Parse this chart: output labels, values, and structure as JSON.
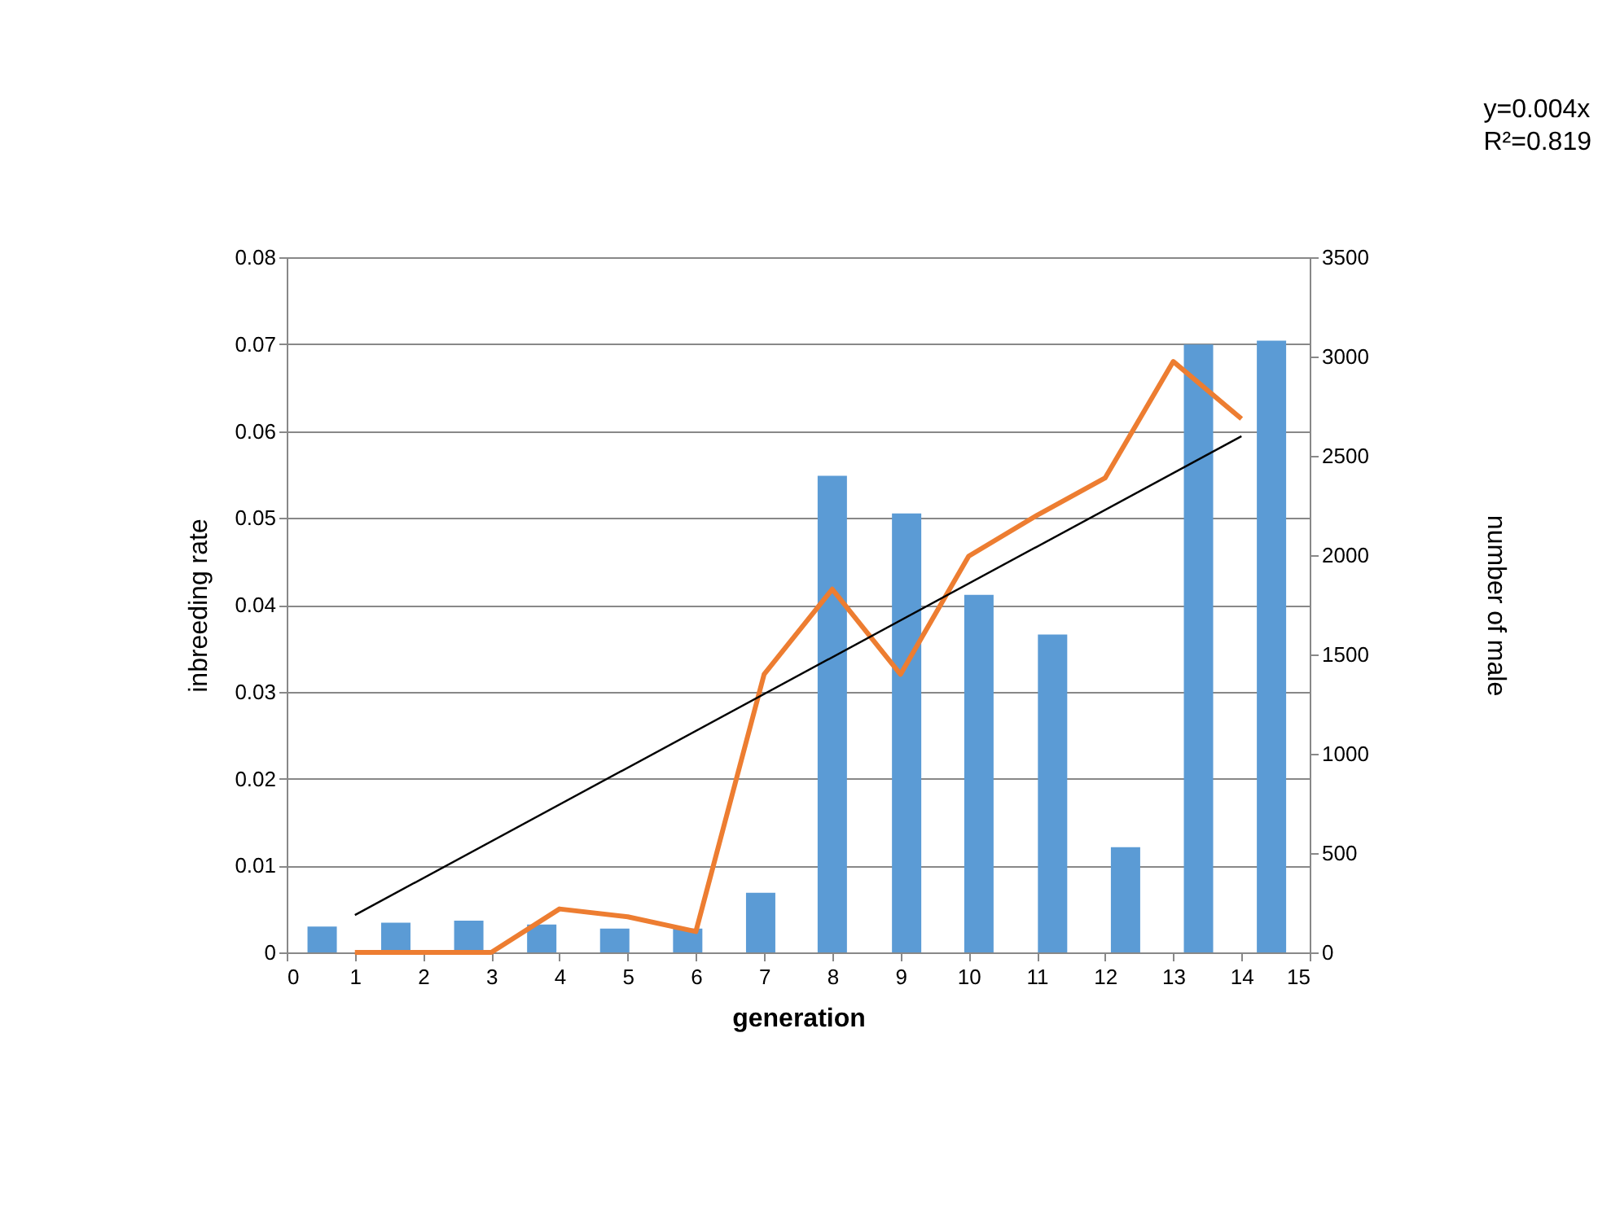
{
  "chart_data": {
    "type": "bar",
    "xlabel": "generation",
    "ylabel": "inbreeding rate",
    "y2label": "number of male",
    "x": [
      1,
      2,
      3,
      4,
      5,
      6,
      7,
      8,
      9,
      10,
      11,
      12,
      13,
      14
    ],
    "series": [
      {
        "axis": "y2",
        "color": "#5b9bd5",
        "x": [
          0.52,
          1.6,
          2.67,
          3.74,
          4.81,
          5.88,
          6.95,
          8.0,
          9.09,
          10.15,
          11.23,
          12.3,
          13.37,
          14.44
        ],
        "values": [
          130,
          150,
          160,
          140,
          120,
          120,
          300,
          2400,
          2210,
          1800,
          1600,
          530,
          3060,
          3080
        ]
      },
      {
        "type": "line",
        "color": "#ed7d31",
        "values": [
          0,
          0,
          0,
          0.005,
          0.0041,
          0.0024,
          0.032,
          0.0418,
          0.032,
          0.0456,
          0.0503,
          0.0546,
          0.068,
          0.0614
        ]
      },
      {
        "type": "line",
        "color": "#000000",
        "x": [
          1,
          14
        ],
        "values": [
          0.0043,
          0.0594
        ]
      }
    ],
    "xlim": [
      0,
      15
    ],
    "xticks": [
      0,
      1,
      2,
      3,
      4,
      5,
      6,
      7,
      8,
      9,
      10,
      11,
      12,
      13,
      14,
      15
    ],
    "ylim": [
      0,
      0.08
    ],
    "yticks": [
      0,
      0.01,
      0.02,
      0.03,
      0.04,
      0.05,
      0.06,
      0.07,
      0.08
    ],
    "y2lim": [
      0,
      3500
    ],
    "y2ticks": [
      0,
      500,
      1000,
      1500,
      2000,
      2500,
      3000,
      3500
    ],
    "grid": "y",
    "marker": "none",
    "line_style": "solid",
    "annotations": [
      "y=0.004x",
      "R²=0.819"
    ]
  }
}
